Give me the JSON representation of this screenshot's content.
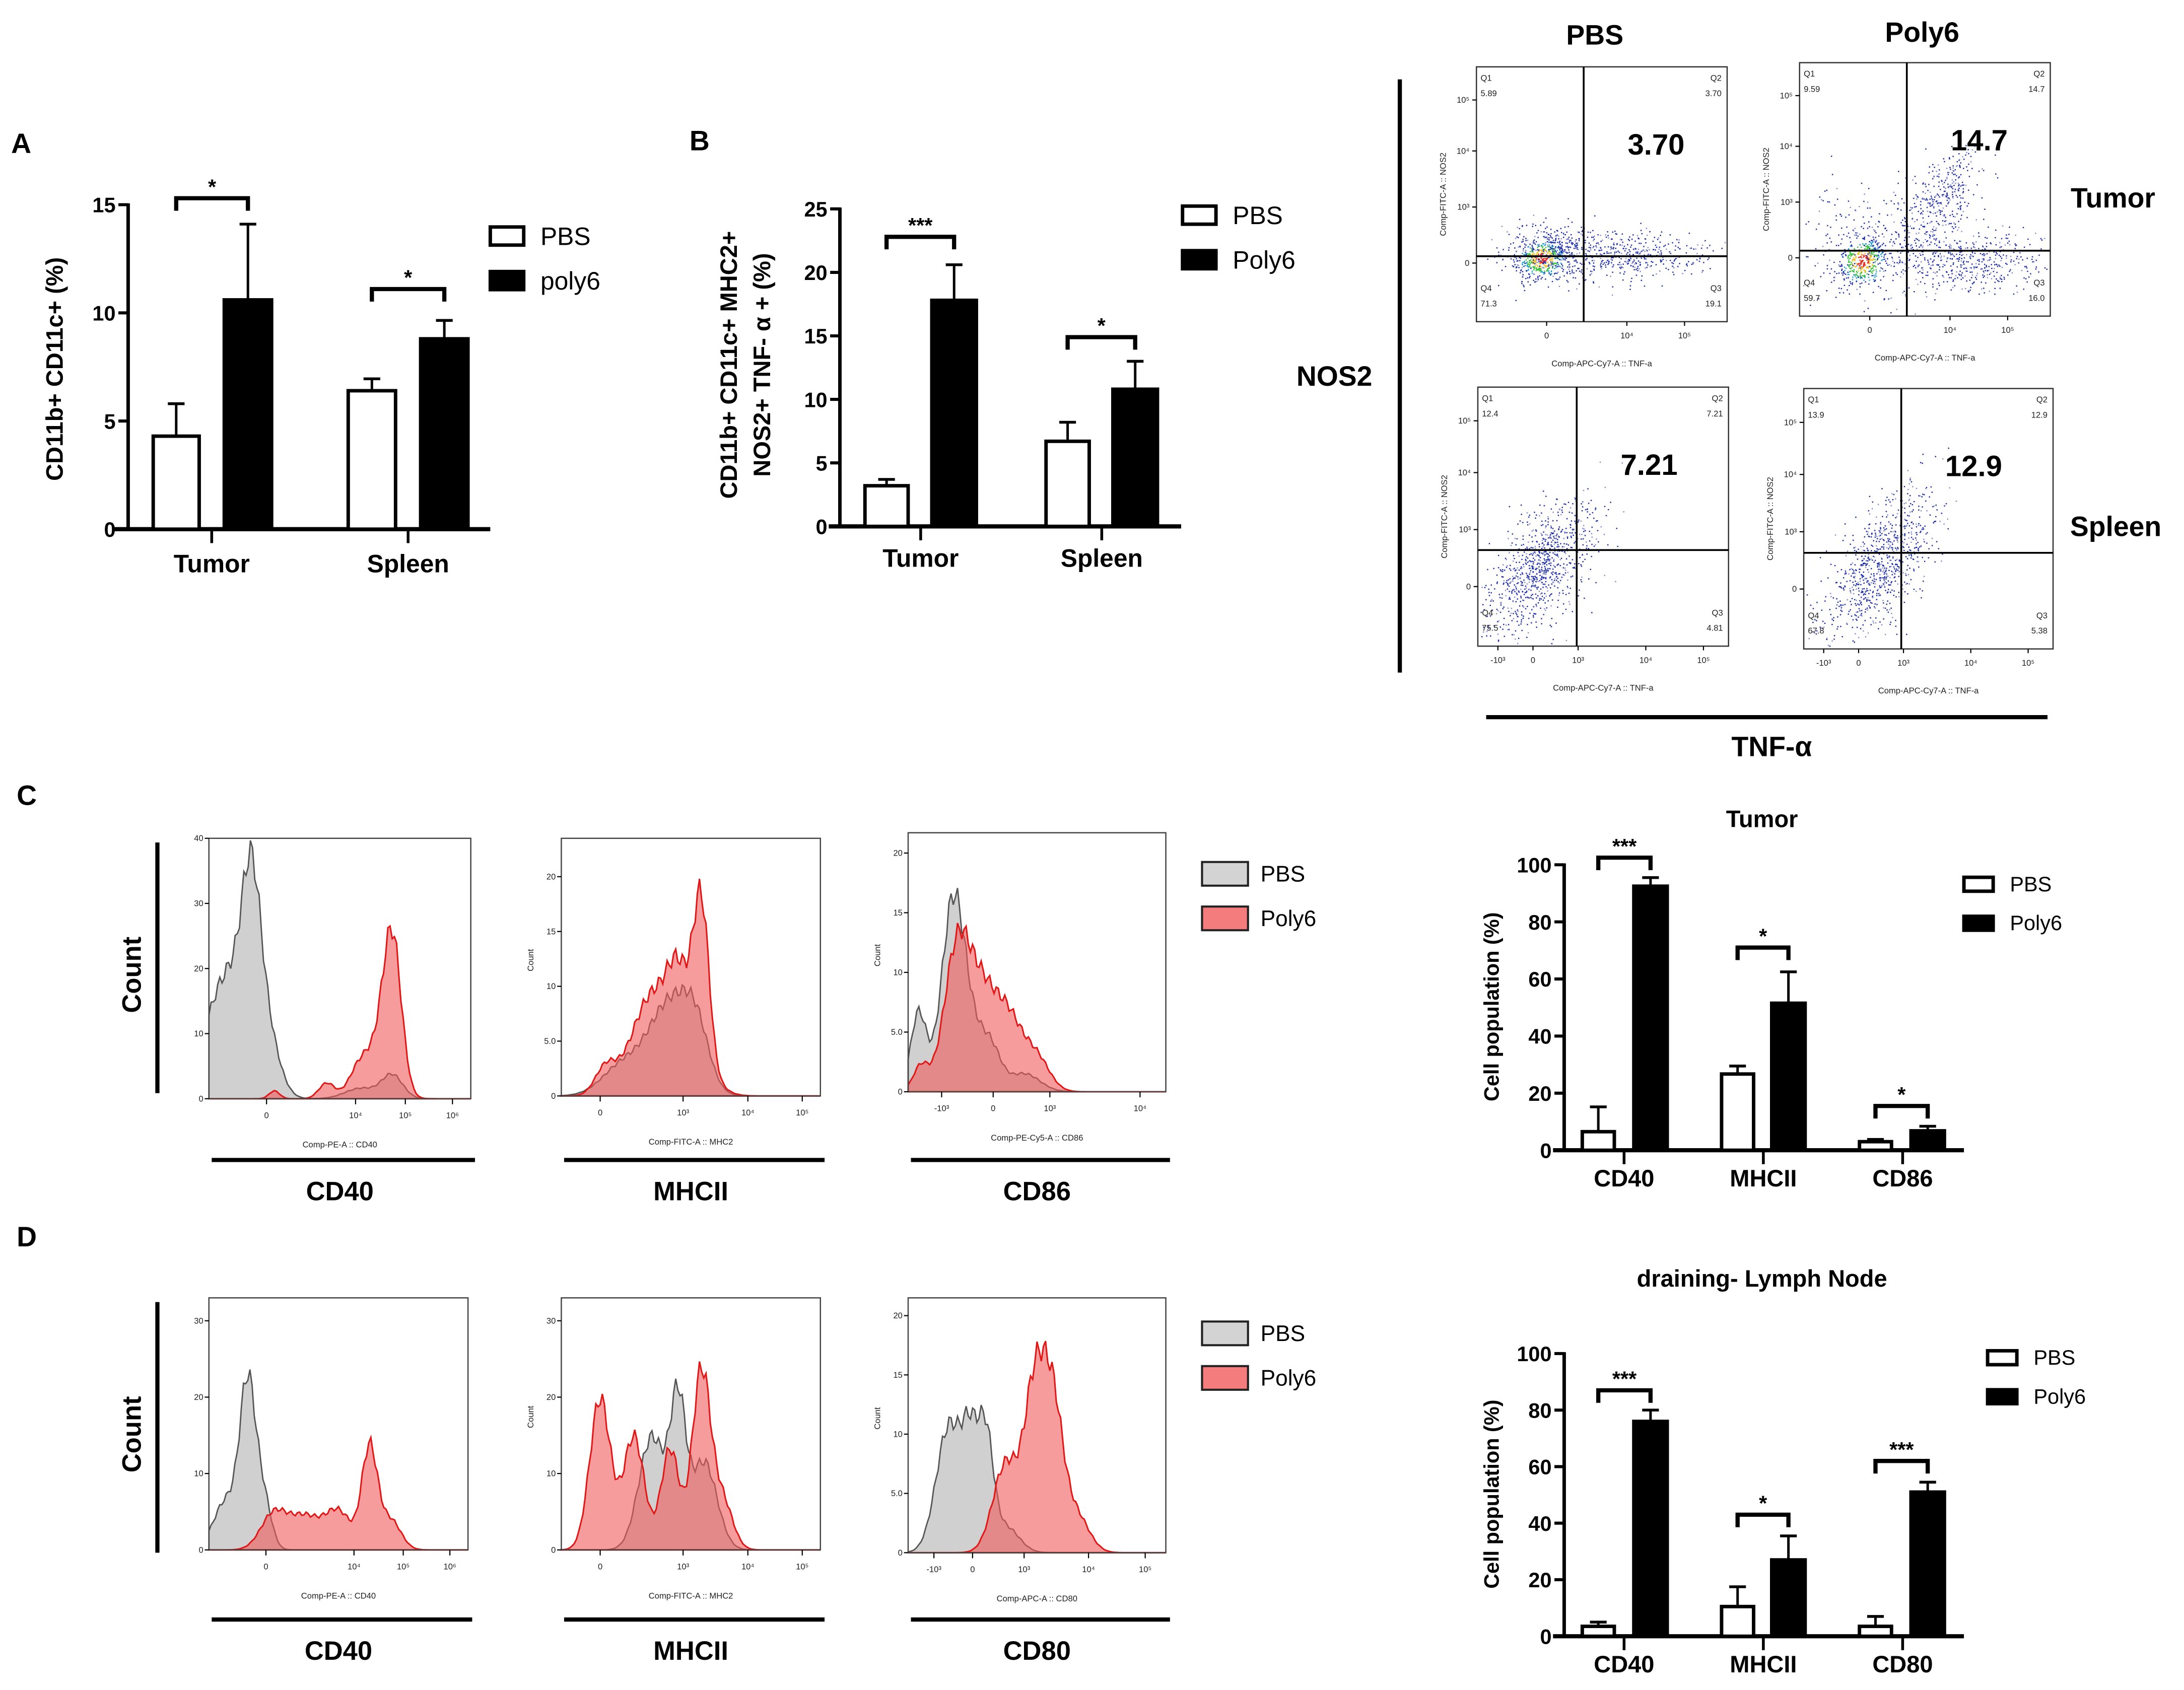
{
  "panel_labels": {
    "a": "A",
    "b": "B",
    "c": "C",
    "d": "D"
  },
  "chart_data": [
    {
      "id": "A",
      "type": "bar",
      "categories": [
        "Tumor",
        "Spleen"
      ],
      "series": [
        {
          "name": "PBS",
          "values": [
            4.3,
            6.4
          ],
          "errors": [
            1.5,
            0.55
          ],
          "color": "#ffffff"
        },
        {
          "name": "poly6",
          "values": [
            10.6,
            8.8
          ],
          "errors": [
            3.5,
            0.85
          ],
          "color": "#000000"
        }
      ],
      "ylabel": [
        "CD11b+ CD11c+ (%)"
      ],
      "ylim": [
        0,
        15
      ],
      "yticks": [
        "0",
        "5",
        "10",
        "15"
      ],
      "significance": [
        {
          "category": 0,
          "label": "*",
          "y": 15.3
        },
        {
          "category": 1,
          "label": "*",
          "y": 11.1
        }
      ],
      "legend": "top-right",
      "grid": false
    },
    {
      "id": "B",
      "type": "bar",
      "categories": [
        "Tumor",
        "Spleen"
      ],
      "series": [
        {
          "name": "PBS",
          "values": [
            3.2,
            6.7
          ],
          "errors": [
            0.5,
            1.5
          ],
          "color": "#ffffff"
        },
        {
          "name": "Poly6",
          "values": [
            17.8,
            10.8
          ],
          "errors": [
            2.8,
            2.2
          ],
          "color": "#000000"
        }
      ],
      "ylabel": [
        "CD11b+ CD11c+ MHC2+",
        "NOS2+ TNF- α + (%)"
      ],
      "ylim": [
        0,
        25
      ],
      "yticks": [
        "0",
        "5",
        "10",
        "15",
        "20",
        "25"
      ],
      "significance": [
        {
          "category": 0,
          "label": "***",
          "y": 22.8
        },
        {
          "category": 1,
          "label": "*",
          "y": 14.9
        }
      ],
      "legend": "top-right",
      "grid": false
    },
    {
      "id": "C-bar",
      "type": "bar",
      "title": "Tumor",
      "categories": [
        "CD40",
        "MHCII",
        "CD86"
      ],
      "series": [
        {
          "name": "PBS",
          "values": [
            6.5,
            26.7,
            3.0
          ],
          "errors": [
            8.7,
            2.8,
            0.8
          ],
          "color": "#ffffff"
        },
        {
          "name": "Poly6",
          "values": [
            92.5,
            51.5,
            6.8
          ],
          "errors": [
            3.0,
            11.0,
            1.6
          ],
          "color": "#000000"
        }
      ],
      "ylabel": [
        "Cell population (%)"
      ],
      "ylim": [
        0,
        100
      ],
      "yticks": [
        "0",
        "20",
        "40",
        "60",
        "80",
        "100"
      ],
      "significance": [
        {
          "category": 0,
          "label": "***",
          "y": 102.5
        },
        {
          "category": 1,
          "label": "*",
          "y": 71
        },
        {
          "category": 2,
          "label": "*",
          "y": 15.5
        }
      ],
      "legend": "top-right",
      "grid": false
    },
    {
      "id": "D-bar",
      "type": "bar",
      "title": "draining- Lymph Node",
      "categories": [
        "CD40",
        "MHCII",
        "CD80"
      ],
      "series": [
        {
          "name": "PBS",
          "values": [
            3.5,
            10.5,
            3.5
          ],
          "errors": [
            1.5,
            7.0,
            3.5
          ],
          "color": "#ffffff"
        },
        {
          "name": "Poly6",
          "values": [
            76.0,
            27.0,
            51.0
          ],
          "errors": [
            4.0,
            8.5,
            3.5
          ],
          "color": "#000000"
        }
      ],
      "ylabel": [
        "Cell population (%)"
      ],
      "ylim": [
        0,
        100
      ],
      "yticks": [
        "0",
        "20",
        "40",
        "60",
        "80",
        "100"
      ],
      "significance": [
        {
          "category": 0,
          "label": "***",
          "y": 87
        },
        {
          "category": 1,
          "label": "*",
          "y": 43
        },
        {
          "category": 2,
          "label": "***",
          "y": 62
        }
      ],
      "legend": "top-right",
      "grid": false
    }
  ],
  "flow": {
    "col_headers": [
      "PBS",
      "Poly6"
    ],
    "row_headers": [
      "Tumor",
      "Spleen"
    ],
    "y_marker": "NOS2",
    "x_marker": "TNF-α",
    "x_axis_title": "Comp-APC-Cy7-A :: TNF-a",
    "y_axis_title": "Comp-FITC-A :: NOS2",
    "quadrant_names": [
      "Q1",
      "Q2",
      "Q3",
      "Q4"
    ],
    "y_ticks": [
      "10⁵",
      "10⁴",
      "10³",
      "0"
    ],
    "x_ticks_tumor": [
      "0",
      "10⁴",
      "10⁵"
    ],
    "x_ticks_spleen": [
      "-10³",
      "0",
      "10³",
      "10⁴",
      "10⁵"
    ],
    "plots": [
      {
        "q1": "5.89",
        "q2": "3.70",
        "q3": "19.1",
        "q4": "71.3",
        "highlight": "3.70"
      },
      {
        "q1": "9.59",
        "q2": "14.7",
        "q3": "16.0",
        "q4": "59.7",
        "highlight": "14.7"
      },
      {
        "q1": "12.4",
        "q2": "7.21",
        "q3": "4.81",
        "q4": "75.5",
        "highlight": "7.21"
      },
      {
        "q1": "13.9",
        "q2": "12.9",
        "q3": "5.38",
        "q4": "67.8",
        "highlight": "12.9"
      }
    ]
  },
  "histograms": {
    "count_label": "Count",
    "legend": [
      {
        "name": "PBS",
        "color": "#d3d3d3"
      },
      {
        "name": "Poly6",
        "color": "#f47c7c"
      }
    ],
    "rows": [
      {
        "panels": [
          {
            "marker": "CD40",
            "x_axis_title": "Comp-PE-A :: CD40",
            "y_axis_title": "",
            "y_ticks": [
              "0",
              "10",
              "20",
              "30",
              "40"
            ],
            "x_ticks": [
              "0",
              "10⁴",
              "10⁵",
              "10⁶"
            ]
          },
          {
            "marker": "MHCII",
            "x_axis_title": "Comp-FITC-A :: MHC2",
            "y_axis_title": "Count",
            "y_ticks": [
              "0",
              "5.0",
              "10",
              "15",
              "20"
            ],
            "x_ticks": [
              "0",
              "10³",
              "10⁴",
              "10⁵"
            ]
          },
          {
            "marker": "CD86",
            "x_axis_title": "Comp-PE-Cy5-A :: CD86",
            "y_axis_title": "Count",
            "y_ticks": [
              "0",
              "5.0",
              "10",
              "15",
              "20"
            ],
            "x_ticks": [
              "-10³",
              "0",
              "10³",
              "10⁴"
            ]
          }
        ]
      },
      {
        "panels": [
          {
            "marker": "CD40",
            "x_axis_title": "Comp-PE-A :: CD40",
            "y_axis_title": "",
            "y_ticks": [
              "0",
              "10",
              "20",
              "30"
            ],
            "x_ticks": [
              "0",
              "10⁴",
              "10⁵",
              "10⁶"
            ]
          },
          {
            "marker": "MHCII",
            "x_axis_title": "Comp-FITC-A :: MHC2",
            "y_axis_title": "Count",
            "y_ticks": [
              "0",
              "10",
              "20",
              "30"
            ],
            "x_ticks": [
              "0",
              "10³",
              "10⁴",
              "10⁵"
            ]
          },
          {
            "marker": "CD80",
            "x_axis_title": "Comp-APC-A :: CD80",
            "y_axis_title": "Count",
            "y_ticks": [
              "0",
              "5.0",
              "10",
              "15",
              "20"
            ],
            "x_ticks": [
              "-10³",
              "0",
              "10³",
              "10⁴",
              "10⁵"
            ]
          }
        ]
      }
    ]
  }
}
